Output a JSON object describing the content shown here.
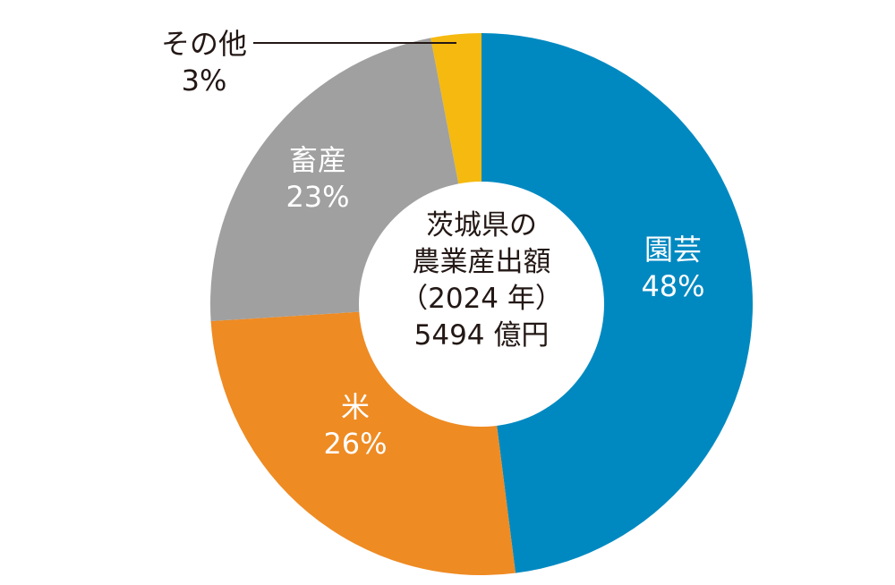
{
  "chart_data": {
    "type": "pie",
    "style": "donut",
    "center_text": [
      "茨城県の",
      "農業産出額",
      "（2024 年）",
      "5494 億円"
    ],
    "slices": [
      {
        "label": "園芸",
        "value": 48,
        "value_label": "48%",
        "color": "#0089c1"
      },
      {
        "label": "米",
        "value": 26,
        "value_label": "26%",
        "color": "#ee8b23"
      },
      {
        "label": "畜産",
        "value": 23,
        "value_label": "23%",
        "color": "#a0a0a0"
      },
      {
        "label": "その他",
        "value": 3,
        "value_label": "3%",
        "color": "#f5b90f"
      }
    ],
    "start": "12 o'clock",
    "direction": "clockwise",
    "legend": "none"
  }
}
